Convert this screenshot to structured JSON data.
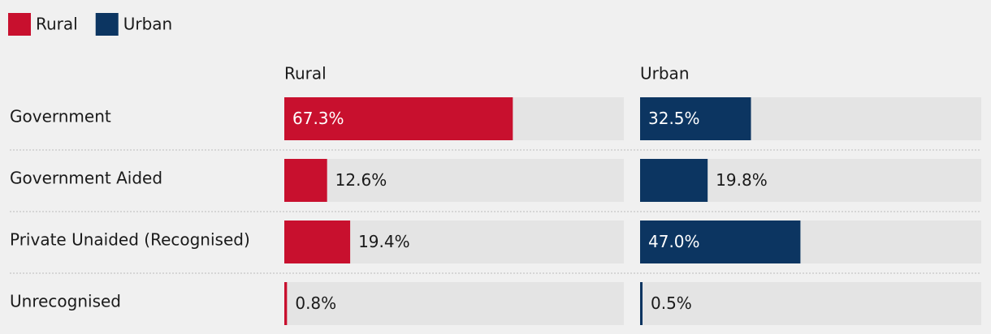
{
  "chart_data": {
    "type": "bar",
    "categories": [
      "Government",
      "Government Aided",
      "Private Unaided (Recognised)",
      "Unrecognised"
    ],
    "series": [
      {
        "name": "Rural",
        "color": "#c8102e",
        "values": [
          67.3,
          12.6,
          19.4,
          0.8
        ],
        "value_labels": [
          "67.3%",
          "12.6%",
          "19.4%",
          "0.8%"
        ]
      },
      {
        "name": "Urban",
        "color": "#0c3561",
        "values": [
          32.5,
          19.8,
          47.0,
          0.5
        ],
        "value_labels": [
          "32.5%",
          "19.8%",
          "47.0%",
          "0.5%"
        ]
      }
    ],
    "xlim": [
      0,
      100
    ],
    "legend": "top-left"
  }
}
